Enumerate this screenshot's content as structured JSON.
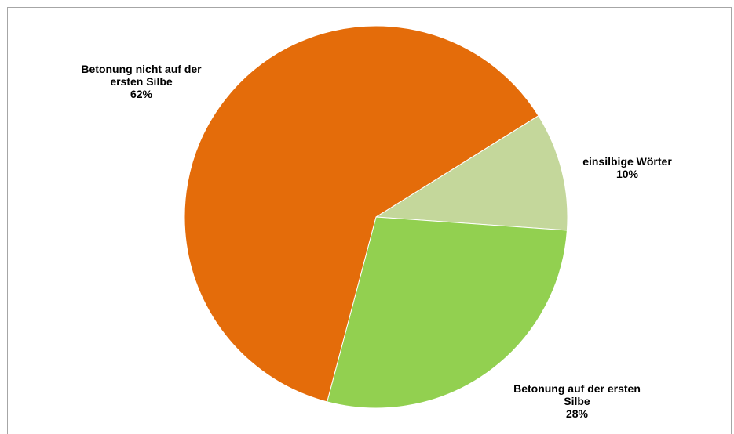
{
  "chart_data": {
    "type": "pie",
    "title": "",
    "slices": [
      {
        "label_lines": [
          "einsilbige Wörter"
        ],
        "percent_label": "10%",
        "value": 10,
        "color": "#c4d79b"
      },
      {
        "label_lines": [
          "Betonung auf der ersten",
          "Silbe"
        ],
        "percent_label": "28%",
        "value": 28,
        "color": "#92d050"
      },
      {
        "label_lines": [
          "Betonung nicht auf der",
          "ersten Silbe"
        ],
        "percent_label": "62%",
        "value": 62,
        "color": "#e46c0a"
      }
    ],
    "legend": "none"
  }
}
